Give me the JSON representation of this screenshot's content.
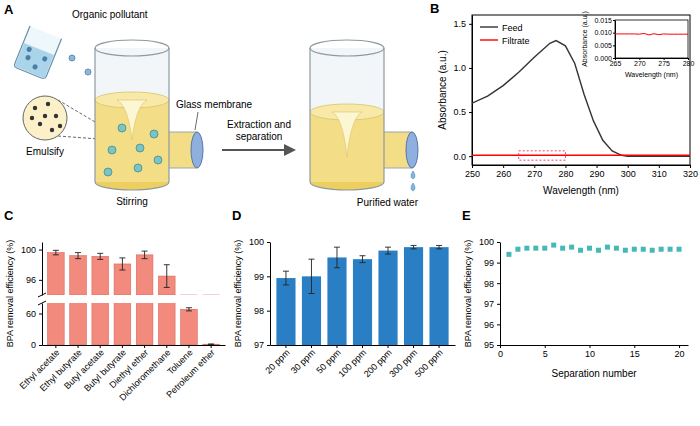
{
  "diagram": {
    "panel": "A",
    "labels": {
      "pollutant": "Organic pollutant",
      "membrane": "Glass membrane",
      "process": "Extraction and separation",
      "emulsify": "Emulsify",
      "stirring": "Stirring",
      "output": "Purified water"
    }
  },
  "chart_data": [
    {
      "panel": "B",
      "type": "line",
      "x_label": "Wavelength (nm)",
      "y_label": "Absorbance (a.u.)",
      "x": [
        250,
        255,
        260,
        265,
        270,
        275,
        277,
        280,
        283,
        286,
        289,
        292,
        295,
        298,
        300,
        305,
        310,
        315,
        320
      ],
      "series": [
        {
          "name": "Feed",
          "color": "#333333",
          "values": [
            0.6,
            0.68,
            0.8,
            0.95,
            1.12,
            1.28,
            1.31,
            1.25,
            1.05,
            0.7,
            0.4,
            0.18,
            0.06,
            0.01,
            0.0,
            0.0,
            0.0,
            0.0,
            0.0
          ]
        },
        {
          "name": "Filtrate",
          "color": "#ff0000",
          "values": [
            0.01,
            0.01,
            0.01,
            0.01,
            0.01,
            0.01,
            0.01,
            0.01,
            0.01,
            0.01,
            0.01,
            0.01,
            0.01,
            0.01,
            0.01,
            0.01,
            0.01,
            0.01,
            0.01
          ]
        }
      ],
      "xlim": [
        250,
        320
      ],
      "xticks": [
        250,
        260,
        270,
        280,
        290,
        300,
        310,
        320
      ],
      "ylim": [
        -0.1,
        1.6
      ],
      "yticks": [
        {
          "value": 0,
          "label": "0.0"
        },
        0.5,
        {
          "value": 1,
          "label": "1.0"
        },
        1.5
      ],
      "legend": "upper left"
    },
    {
      "type": "line",
      "x_label": "Wavelength (nm)",
      "y_label": "Absorbance (a.u.)",
      "x": [
        265,
        266,
        267,
        268,
        269,
        270,
        271,
        272,
        273,
        274,
        275,
        276,
        277,
        278,
        279,
        280
      ],
      "series": [
        {
          "color": "#ff0000",
          "values": [
            0.0095,
            0.0095,
            0.0095,
            0.0095,
            0.0095,
            0.0094,
            0.0097,
            0.0091,
            0.0096,
            0.0092,
            0.0095,
            0.0094,
            0.0094,
            0.0094,
            0.0094,
            0.0094
          ]
        }
      ],
      "xlim": [
        265,
        280
      ],
      "xticks": [
        265,
        270,
        275,
        280
      ],
      "ylim": [
        0,
        0.015
      ],
      "yticks": [
        {
          "value": 0,
          "label": "0.000"
        },
        0.005,
        {
          "value": 0.01,
          "label": "0.010"
        },
        0.015
      ]
    },
    {
      "panel": "C",
      "type": "bar",
      "y_label": "BPA removal efficiency (%)",
      "categories": [
        "Ethyl acetate",
        "Ethyl butyrate",
        "Butyl acetate",
        "Butyl butyrate",
        "Diethyl ether",
        "Dichloromethane",
        "Toluene",
        "Petroleum ether"
      ],
      "values": [
        99.6,
        99.2,
        99.1,
        98.1,
        99.3,
        96.5,
        68,
        1.5
      ],
      "errors": [
        0.3,
        0.4,
        0.4,
        0.8,
        0.5,
        1.5,
        3,
        0.4
      ],
      "color": "#f28b7d",
      "ylim": [
        [
          0,
          80
        ],
        [
          94,
          101
        ]
      ],
      "yticks": [
        [
          0,
          60
        ],
        [
          96,
          100
        ]
      ]
    },
    {
      "panel": "D",
      "type": "bar",
      "y_label": "BPA removal efficiency (%)",
      "categories": [
        "20 ppm",
        "30 ppm",
        "50 ppm",
        "100 ppm",
        "200 ppm",
        "300 ppm",
        "500 ppm"
      ],
      "values": [
        98.95,
        99.0,
        99.55,
        99.5,
        99.75,
        99.85,
        99.85
      ],
      "errors": [
        0.2,
        0.5,
        0.3,
        0.1,
        0.1,
        0.05,
        0.05
      ],
      "color": "#2a7fc4",
      "ylim": [
        97,
        100
      ],
      "yticks": [
        97,
        98,
        99,
        100
      ]
    },
    {
      "panel": "E",
      "type": "scatter",
      "x_label": "Separation number",
      "y_label": "BPA removal efficiency (%)",
      "x": [
        1,
        2,
        3,
        4,
        5,
        6,
        7,
        8,
        9,
        10,
        11,
        12,
        13,
        14,
        15,
        16,
        17,
        18,
        19,
        20
      ],
      "values": [
        99.4,
        99.65,
        99.7,
        99.7,
        99.7,
        99.85,
        99.7,
        99.75,
        99.6,
        99.7,
        99.6,
        99.75,
        99.7,
        99.6,
        99.65,
        99.65,
        99.6,
        99.65,
        99.65,
        99.65
      ],
      "color": "#45b8b8",
      "marker": "square",
      "xlim": [
        0,
        21
      ],
      "xticks": [
        0,
        5,
        10,
        15,
        20
      ],
      "ylim": [
        95,
        100
      ],
      "yticks": [
        95,
        96,
        97,
        98,
        99,
        100
      ]
    }
  ]
}
